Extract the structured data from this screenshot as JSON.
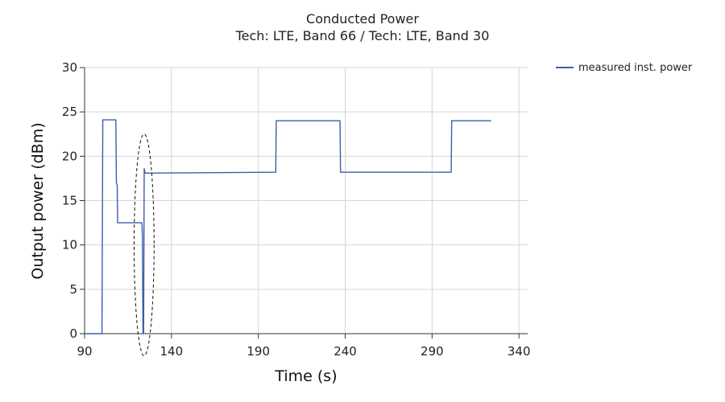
{
  "chart_data": {
    "type": "line",
    "title": "Conducted Power",
    "subtitle": "Tech: LTE, Band 66 / Tech: LTE, Band 30",
    "xlabel": "Time (s)",
    "ylabel": "Output power (dBm)",
    "xlim": [
      90,
      345
    ],
    "ylim": [
      0,
      30
    ],
    "xticks": [
      90,
      140,
      190,
      240,
      290,
      340
    ],
    "yticks": [
      0,
      5,
      10,
      15,
      20,
      25,
      30
    ],
    "grid": true,
    "legend_position": "top-right",
    "series": [
      {
        "name": "measured inst. power",
        "color": "#3a5faa",
        "points": [
          [
            90,
            0
          ],
          [
            100,
            0
          ],
          [
            100.5,
            24.1
          ],
          [
            108,
            24.1
          ],
          [
            108.3,
            17
          ],
          [
            108.8,
            16.7
          ],
          [
            109,
            12.5
          ],
          [
            123,
            12.5
          ],
          [
            123.3,
            11
          ],
          [
            123.6,
            0
          ],
          [
            124,
            0
          ],
          [
            124.3,
            18.6
          ],
          [
            124.8,
            18.1
          ],
          [
            200,
            18.2
          ],
          [
            200.3,
            24.0
          ],
          [
            237,
            24.0
          ],
          [
            237.3,
            18.2
          ],
          [
            301,
            18.2
          ],
          [
            301.3,
            24.0
          ],
          [
            324,
            24.0
          ]
        ]
      }
    ],
    "annotations": [
      {
        "type": "dashed-ellipse",
        "x_range": [
          118.5,
          130
        ],
        "y_range": [
          -2.5,
          22.5
        ]
      }
    ]
  }
}
